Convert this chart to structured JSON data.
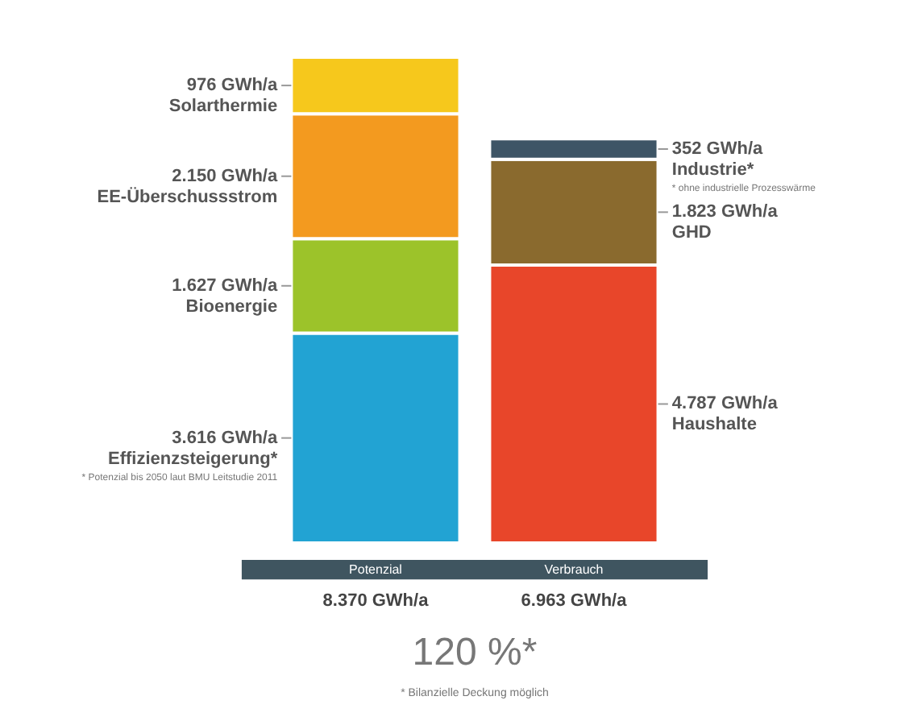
{
  "chart_data": {
    "type": "bar",
    "stacked": true,
    "categories": [
      "Potenzial",
      "Verbrauch"
    ],
    "series": [
      {
        "name": "Effizienzsteigerung*",
        "color": "#22a3d3",
        "values": [
          3616,
          null
        ],
        "value_labels": [
          "3.616 GWh/a",
          null
        ]
      },
      {
        "name": "Bioenergie",
        "color": "#9cc32a",
        "values": [
          1627,
          null
        ],
        "value_labels": [
          "1.627 GWh/a",
          null
        ]
      },
      {
        "name": "EE-Überschussstrom",
        "color": "#f39a1f",
        "values": [
          2150,
          null
        ],
        "value_labels": [
          "2.150 GWh/a",
          null
        ]
      },
      {
        "name": "Solarthermie",
        "color": "#f6c81c",
        "values": [
          976,
          null
        ],
        "value_labels": [
          "976 GWh/a",
          null
        ]
      },
      {
        "name": "Haushalte",
        "color": "#e8462a",
        "values": [
          null,
          4787
        ],
        "value_labels": [
          null,
          "4.787 GWh/a"
        ]
      },
      {
        "name": "GHD",
        "color": "#8a6a2e",
        "values": [
          null,
          1823
        ],
        "value_labels": [
          null,
          "1.823 GWh/a"
        ]
      },
      {
        "name": "Industrie*",
        "color": "#3e5566",
        "values": [
          null,
          352
        ],
        "value_labels": [
          null,
          "352 GWh/a"
        ]
      }
    ],
    "totals": [
      "8.370 GWh/a",
      "6.963 GWh/a"
    ],
    "annotations": [
      "120 %*",
      "* Bilanzielle Deckung möglich",
      "* Potenzial bis 2050 laut BMU Leitstudie 2011",
      "* ohne industrielle Prozesswärme"
    ]
  }
}
